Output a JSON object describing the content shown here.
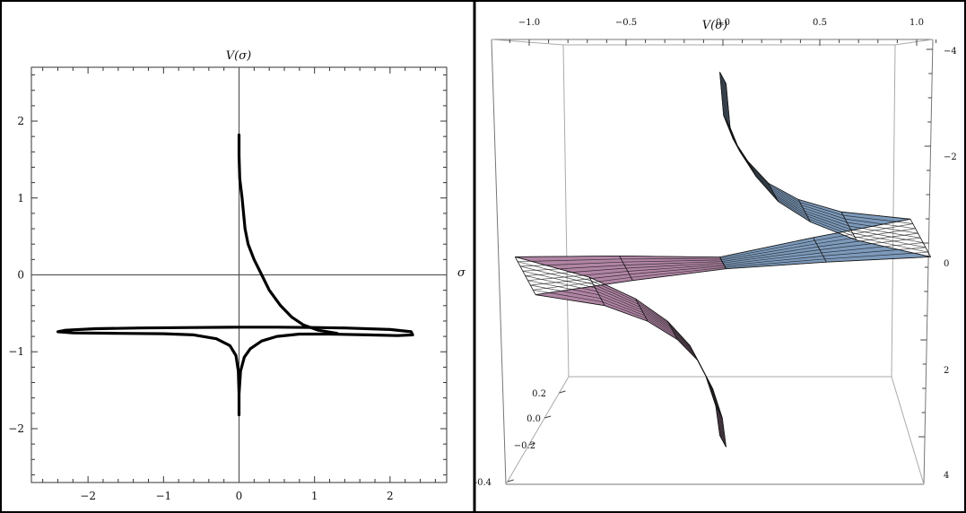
{
  "chart_data": [
    {
      "type": "line",
      "title": "",
      "xlabel": "σ",
      "ylabel": "V(σ)",
      "xlim": [
        -2.75,
        2.75
      ],
      "ylim": [
        -2.7,
        2.7
      ],
      "x_ticks": [
        -2,
        -1,
        0,
        1,
        2
      ],
      "y_ticks": [
        -2,
        -1,
        0,
        1,
        2
      ],
      "x_tick_labels": [
        "−2",
        "−1",
        "0",
        "1",
        "2"
      ],
      "y_tick_labels": [
        "−2",
        "−1",
        "0",
        "1",
        "2"
      ],
      "grid": false,
      "axes_through_origin": true,
      "series": [
        {
          "points": [
            [
              0.0,
              -1.82
            ],
            [
              0.0,
              -1.55
            ],
            [
              0.02,
              -1.25
            ],
            [
              0.07,
              -1.07
            ],
            [
              0.15,
              -0.96
            ],
            [
              0.3,
              -0.86
            ],
            [
              0.5,
              -0.8
            ],
            [
              0.8,
              -0.77
            ],
            [
              1.2,
              -0.77
            ],
            [
              1.7,
              -0.78
            ],
            [
              2.1,
              -0.79
            ],
            [
              2.3,
              -0.78
            ],
            [
              2.28,
              -0.74
            ],
            [
              2.0,
              -0.71
            ],
            [
              1.4,
              -0.69
            ],
            [
              1.0,
              -0.685
            ],
            [
              0.5,
              -0.68
            ],
            [
              0.0,
              -0.68
            ],
            [
              -0.6,
              -0.685
            ],
            [
              -1.3,
              -0.69
            ],
            [
              -1.9,
              -0.7
            ],
            [
              -2.3,
              -0.72
            ],
            [
              -2.4,
              -0.74
            ],
            [
              -2.2,
              -0.755
            ],
            [
              -1.6,
              -0.76
            ],
            [
              -1.0,
              -0.765
            ],
            [
              -0.6,
              -0.78
            ],
            [
              -0.3,
              -0.83
            ],
            [
              -0.12,
              -0.92
            ],
            [
              -0.04,
              -1.05
            ],
            [
              -0.01,
              -1.25
            ],
            [
              0.0,
              -1.55
            ],
            [
              0.0,
              -1.82
            ]
          ]
        },
        {
          "points": [
            [
              0.0,
              1.82
            ],
            [
              0.0,
              1.55
            ],
            [
              0.01,
              1.25
            ],
            [
              0.04,
              1.0
            ],
            [
              0.08,
              0.6
            ],
            [
              0.12,
              0.4
            ],
            [
              0.2,
              0.2
            ],
            [
              0.3,
              0.0
            ],
            [
              0.4,
              -0.2
            ],
            [
              0.55,
              -0.4
            ],
            [
              0.7,
              -0.55
            ],
            [
              0.85,
              -0.65
            ],
            [
              1.05,
              -0.72
            ],
            [
              1.3,
              -0.76
            ]
          ]
        }
      ]
    },
    {
      "type": "surface",
      "title": "",
      "xlabel": "",
      "ylabel": "V(σ)",
      "x_ticks": [
        -1.0,
        -0.5,
        0.0,
        0.5,
        1.0
      ],
      "x_tick_labels": [
        "−1.0",
        "−0.5",
        "0.0",
        "0.5",
        "1.0"
      ],
      "depth_ticks": [
        0.2,
        0.0,
        -0.2,
        -0.4
      ],
      "depth_tick_labels": [
        "0.2",
        "0.0",
        "−0.2",
        "-0.4"
      ],
      "vertical_ticks": [
        -4,
        -2,
        0,
        2,
        4
      ],
      "vertical_tick_labels": [
        "−4",
        "−2",
        "0",
        "2",
        "4"
      ],
      "surface_colors": {
        "upper": "#6f8fb4",
        "lower": "#a9789b",
        "mesh": "#111111"
      },
      "profile_points": [
        [
          0.0,
          -3.9
        ],
        [
          0.02,
          -3.0
        ],
        [
          0.07,
          -2.5
        ],
        [
          0.15,
          -2.0
        ],
        [
          0.26,
          -1.5
        ],
        [
          0.42,
          -1.1
        ],
        [
          0.65,
          -0.75
        ],
        [
          1.02,
          -0.45
        ],
        [
          0.5,
          -0.28
        ],
        [
          0.0,
          -0.08
        ],
        [
          -0.5,
          0.1
        ],
        [
          -1.02,
          0.33
        ],
        [
          -0.65,
          0.6
        ],
        [
          -0.42,
          0.95
        ],
        [
          -0.26,
          1.35
        ],
        [
          -0.15,
          1.8
        ],
        [
          -0.07,
          2.4
        ],
        [
          -0.02,
          3.0
        ],
        [
          0.0,
          3.6
        ]
      ]
    }
  ]
}
